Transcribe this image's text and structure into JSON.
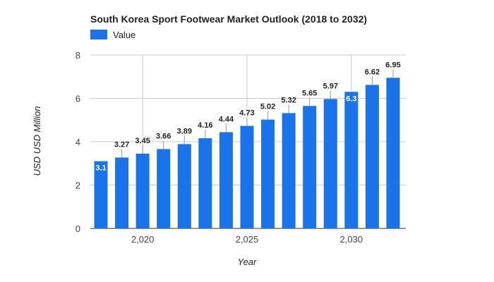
{
  "chart_data": {
    "type": "bar",
    "title": "South Korea Sport Footwear Market Outlook (2018 to 2032)",
    "xlabel": "Year",
    "ylabel": "USD USD Million",
    "x": [
      2018,
      2019,
      2020,
      2021,
      2022,
      2023,
      2024,
      2025,
      2026,
      2027,
      2028,
      2029,
      2030,
      2031,
      2032
    ],
    "series": [
      {
        "name": "Value",
        "color": "#1a73e8",
        "values": [
          3.1,
          3.27,
          3.45,
          3.66,
          3.89,
          4.16,
          4.44,
          4.73,
          5.02,
          5.32,
          5.65,
          5.97,
          6.3,
          6.62,
          6.95
        ],
        "labels": [
          "3.1",
          "3.27",
          "3.45",
          "3.66",
          "3.89",
          "4.16",
          "4.44",
          "4.73",
          "5.02",
          "5.32",
          "5.65",
          "5.97",
          "6.3",
          "6.62",
          "6.95"
        ]
      }
    ],
    "ylim": [
      0,
      8
    ],
    "yticks": [
      0,
      2,
      4,
      6,
      8
    ],
    "ytick_labels": [
      "0",
      "2",
      "4",
      "6",
      "8"
    ],
    "xticks": [
      2020,
      2025,
      2030
    ],
    "xtick_labels": [
      "2,020",
      "2,025",
      "2,030"
    ],
    "grid": true,
    "legend": "top-left",
    "inside_label_years": [
      2018,
      2030
    ]
  }
}
